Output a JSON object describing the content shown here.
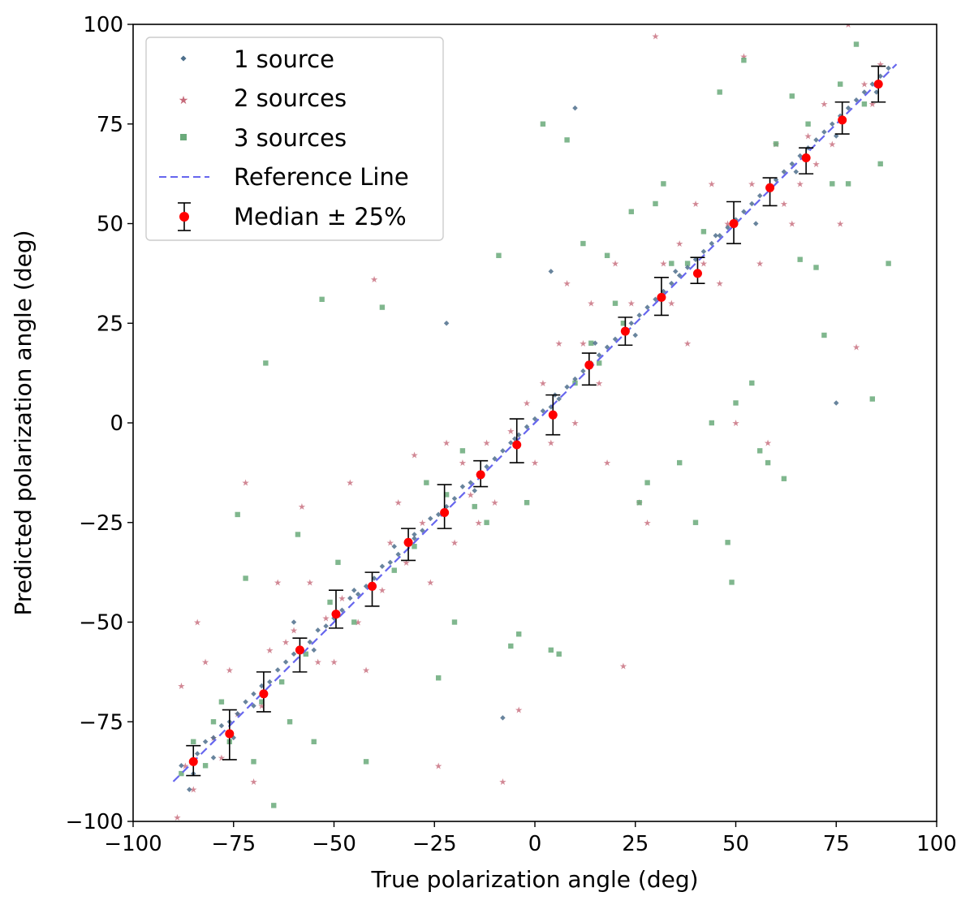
{
  "chart_data": {
    "type": "scatter",
    "title": "",
    "xlabel": "True polarization angle (deg)",
    "ylabel": "Predicted polarization angle (deg)",
    "xlim": [
      -100,
      100
    ],
    "ylim": [
      -100,
      100
    ],
    "xticks": [
      -100,
      -75,
      -50,
      -25,
      0,
      25,
      50,
      75,
      100
    ],
    "yticks": [
      -100,
      -75,
      -50,
      -25,
      0,
      25,
      50,
      75,
      100
    ],
    "xtick_labels": [
      "−100",
      "−75",
      "−50",
      "−25",
      "0",
      "25",
      "50",
      "75",
      "100"
    ],
    "ytick_labels": [
      "−100",
      "−75",
      "−50",
      "−25",
      "0",
      "25",
      "50",
      "75",
      "100"
    ],
    "grid": false,
    "legend_position": "top-left",
    "legend": [
      "1 source",
      "2 sources",
      "3 sources",
      "Reference Line",
      "Median ± 25%"
    ],
    "reference_line": {
      "name": "Reference Line",
      "x": [
        -90,
        90
      ],
      "y": [
        -90,
        90
      ],
      "color": "#6666ee"
    },
    "series": [
      {
        "name": "1 source",
        "marker": "diamond",
        "color": "#4d6f8c",
        "points": [
          [
            -88,
            -86
          ],
          [
            -86,
            -92
          ],
          [
            -84,
            -83
          ],
          [
            -82,
            -80
          ],
          [
            -80,
            -79
          ],
          [
            -78,
            -76
          ],
          [
            -76,
            -75
          ],
          [
            -74,
            -73
          ],
          [
            -72,
            -70
          ],
          [
            -70,
            -71
          ],
          [
            -68,
            -66
          ],
          [
            -66,
            -65
          ],
          [
            -64,
            -62
          ],
          [
            -62,
            -60
          ],
          [
            -60,
            -58
          ],
          [
            -58,
            -57
          ],
          [
            -56,
            -55
          ],
          [
            -54,
            -52
          ],
          [
            -52,
            -51
          ],
          [
            -50,
            -49
          ],
          [
            -48,
            -47
          ],
          [
            -46,
            -44
          ],
          [
            -44,
            -43
          ],
          [
            -42,
            -41
          ],
          [
            -40,
            -39
          ],
          [
            -38,
            -36
          ],
          [
            -36,
            -35
          ],
          [
            -34,
            -33
          ],
          [
            -32,
            -30
          ],
          [
            -30,
            -29
          ],
          [
            -28,
            -27
          ],
          [
            -26,
            -24
          ],
          [
            -24,
            -23
          ],
          [
            -22,
            -21
          ],
          [
            -20,
            -19
          ],
          [
            -18,
            -16
          ],
          [
            -16,
            -15
          ],
          [
            -14,
            -13
          ],
          [
            -12,
            -11
          ],
          [
            -10,
            -9
          ],
          [
            -8,
            -7
          ],
          [
            -6,
            -5
          ],
          [
            -4,
            -3
          ],
          [
            -2,
            -1
          ],
          [
            0,
            1
          ],
          [
            2,
            3
          ],
          [
            4,
            4
          ],
          [
            6,
            6
          ],
          [
            8,
            9
          ],
          [
            10,
            11
          ],
          [
            12,
            13
          ],
          [
            14,
            15
          ],
          [
            16,
            17
          ],
          [
            18,
            19
          ],
          [
            20,
            21
          ],
          [
            22,
            23
          ],
          [
            24,
            25
          ],
          [
            26,
            27
          ],
          [
            28,
            29
          ],
          [
            30,
            31
          ],
          [
            32,
            33
          ],
          [
            34,
            35
          ],
          [
            36,
            37
          ],
          [
            38,
            39
          ],
          [
            40,
            41
          ],
          [
            42,
            43
          ],
          [
            44,
            45
          ],
          [
            46,
            47
          ],
          [
            48,
            49
          ],
          [
            50,
            51
          ],
          [
            52,
            53
          ],
          [
            54,
            55
          ],
          [
            56,
            57
          ],
          [
            58,
            59
          ],
          [
            60,
            61
          ],
          [
            62,
            63
          ],
          [
            64,
            65
          ],
          [
            66,
            67
          ],
          [
            68,
            69
          ],
          [
            70,
            71
          ],
          [
            72,
            73
          ],
          [
            74,
            75
          ],
          [
            76,
            77
          ],
          [
            78,
            79
          ],
          [
            80,
            81
          ],
          [
            82,
            83
          ],
          [
            84,
            85
          ],
          [
            86,
            87
          ],
          [
            88,
            89
          ],
          [
            -85,
            -88
          ],
          [
            -70,
            -68
          ],
          [
            -55,
            -57
          ],
          [
            -35,
            -31
          ],
          [
            -15,
            -17
          ],
          [
            5,
            7
          ],
          [
            25,
            22
          ],
          [
            45,
            47
          ],
          [
            65,
            63
          ],
          [
            85,
            83
          ],
          [
            -75,
            -79
          ],
          [
            -45,
            -42
          ],
          [
            -5,
            -4
          ],
          [
            35,
            38
          ],
          [
            75,
            72
          ],
          [
            10,
            79
          ],
          [
            -22,
            25
          ],
          [
            -8,
            -74
          ],
          [
            4,
            38
          ],
          [
            75,
            5
          ],
          [
            -60,
            -50
          ],
          [
            -30,
            -28
          ],
          [
            15,
            20
          ],
          [
            55,
            50
          ],
          [
            -80,
            -84
          ]
        ]
      },
      {
        "name": "2 sources",
        "marker": "star",
        "color": "#c66a7a",
        "points": [
          [
            -89,
            -99
          ],
          [
            -88,
            -66
          ],
          [
            -87,
            -86
          ],
          [
            -85,
            -92
          ],
          [
            -84,
            -50
          ],
          [
            -82,
            -60
          ],
          [
            -80,
            -79
          ],
          [
            -78,
            -84
          ],
          [
            -76,
            -62
          ],
          [
            -74,
            -73
          ],
          [
            -72,
            -15
          ],
          [
            -70,
            -90
          ],
          [
            -68,
            -71
          ],
          [
            -66,
            -57
          ],
          [
            -64,
            -40
          ],
          [
            -62,
            -55
          ],
          [
            -60,
            -52
          ],
          [
            -58,
            -21
          ],
          [
            -56,
            -40
          ],
          [
            -54,
            -60
          ],
          [
            -52,
            -49
          ],
          [
            -50,
            -60
          ],
          [
            -48,
            -44
          ],
          [
            -46,
            -15
          ],
          [
            -44,
            -50
          ],
          [
            -42,
            -62
          ],
          [
            -40,
            36
          ],
          [
            -38,
            -42
          ],
          [
            -36,
            -30
          ],
          [
            -34,
            -20
          ],
          [
            -32,
            -35
          ],
          [
            -30,
            -8
          ],
          [
            -28,
            -25
          ],
          [
            -26,
            -40
          ],
          [
            -24,
            -86
          ],
          [
            -22,
            -5
          ],
          [
            -20,
            -30
          ],
          [
            -18,
            -10
          ],
          [
            -16,
            -18
          ],
          [
            -14,
            -25
          ],
          [
            -12,
            -5
          ],
          [
            -10,
            -20
          ],
          [
            -8,
            -90
          ],
          [
            -6,
            -2
          ],
          [
            -4,
            -72
          ],
          [
            -2,
            5
          ],
          [
            0,
            -10
          ],
          [
            2,
            10
          ],
          [
            4,
            -5
          ],
          [
            6,
            20
          ],
          [
            8,
            35
          ],
          [
            10,
            0
          ],
          [
            12,
            20
          ],
          [
            14,
            30
          ],
          [
            16,
            10
          ],
          [
            18,
            -10
          ],
          [
            20,
            40
          ],
          [
            22,
            -61
          ],
          [
            24,
            30
          ],
          [
            26,
            -20
          ],
          [
            28,
            -25
          ],
          [
            30,
            97
          ],
          [
            32,
            40
          ],
          [
            34,
            30
          ],
          [
            36,
            45
          ],
          [
            38,
            20
          ],
          [
            40,
            55
          ],
          [
            42,
            40
          ],
          [
            44,
            60
          ],
          [
            46,
            35
          ],
          [
            48,
            50
          ],
          [
            50,
            0
          ],
          [
            52,
            92
          ],
          [
            54,
            60
          ],
          [
            56,
            40
          ],
          [
            58,
            -5
          ],
          [
            60,
            70
          ],
          [
            62,
            55
          ],
          [
            64,
            50
          ],
          [
            66,
            60
          ],
          [
            68,
            72
          ],
          [
            70,
            65
          ],
          [
            72,
            80
          ],
          [
            74,
            70
          ],
          [
            76,
            50
          ],
          [
            78,
            100
          ],
          [
            80,
            19
          ],
          [
            82,
            85
          ],
          [
            84,
            80
          ],
          [
            86,
            90
          ]
        ]
      },
      {
        "name": "3 sources",
        "marker": "square",
        "color": "#6aaa7a",
        "points": [
          [
            -88,
            -88
          ],
          [
            -85,
            -80
          ],
          [
            -82,
            -86
          ],
          [
            -80,
            -75
          ],
          [
            -78,
            -70
          ],
          [
            -76,
            -80
          ],
          [
            -74,
            -23
          ],
          [
            -72,
            -39
          ],
          [
            -70,
            -85
          ],
          [
            -68,
            -70
          ],
          [
            -67,
            15
          ],
          [
            -65,
            -96
          ],
          [
            -63,
            -65
          ],
          [
            -61,
            -75
          ],
          [
            -59,
            -28
          ],
          [
            -57,
            -58
          ],
          [
            -55,
            -80
          ],
          [
            -53,
            31
          ],
          [
            -51,
            -45
          ],
          [
            -49,
            -35
          ],
          [
            -45,
            -50
          ],
          [
            -42,
            -85
          ],
          [
            -38,
            29
          ],
          [
            -35,
            -37
          ],
          [
            -30,
            -31
          ],
          [
            -27,
            -15
          ],
          [
            -24,
            -64
          ],
          [
            -22,
            -18
          ],
          [
            -20,
            -50
          ],
          [
            -18,
            -7
          ],
          [
            -15,
            -21
          ],
          [
            -12,
            -25
          ],
          [
            -9,
            42
          ],
          [
            -6,
            -56
          ],
          [
            -4,
            -53
          ],
          [
            -2,
            -20
          ],
          [
            2,
            75
          ],
          [
            4,
            -57
          ],
          [
            6,
            -58
          ],
          [
            8,
            71
          ],
          [
            10,
            10
          ],
          [
            12,
            45
          ],
          [
            14,
            20
          ],
          [
            16,
            15
          ],
          [
            18,
            42
          ],
          [
            20,
            30
          ],
          [
            22,
            25
          ],
          [
            24,
            53
          ],
          [
            26,
            -20
          ],
          [
            28,
            -15
          ],
          [
            30,
            55
          ],
          [
            32,
            60
          ],
          [
            34,
            40
          ],
          [
            36,
            -10
          ],
          [
            38,
            40
          ],
          [
            40,
            -25
          ],
          [
            42,
            48
          ],
          [
            44,
            0
          ],
          [
            46,
            83
          ],
          [
            48,
            -30
          ],
          [
            49,
            -40
          ],
          [
            50,
            5
          ],
          [
            52,
            91
          ],
          [
            54,
            10
          ],
          [
            56,
            -7
          ],
          [
            58,
            -10
          ],
          [
            60,
            70
          ],
          [
            62,
            -14
          ],
          [
            64,
            82
          ],
          [
            66,
            41
          ],
          [
            68,
            75
          ],
          [
            70,
            39
          ],
          [
            72,
            22
          ],
          [
            74,
            60
          ],
          [
            76,
            85
          ],
          [
            78,
            60
          ],
          [
            80,
            95
          ],
          [
            82,
            80
          ],
          [
            84,
            6
          ],
          [
            86,
            65
          ],
          [
            88,
            40
          ]
        ]
      },
      {
        "name": "Median ± 25%",
        "marker": "circle",
        "color": "#ff0000",
        "errorbar_color": "#000000",
        "points": [
          [
            -85,
            -85
          ],
          [
            -76,
            -78
          ],
          [
            -67.5,
            -68
          ],
          [
            -58.5,
            -57
          ],
          [
            -49.5,
            -48
          ],
          [
            -40.5,
            -41
          ],
          [
            -31.5,
            -30
          ],
          [
            -22.5,
            -22.5
          ],
          [
            -13.5,
            -13
          ],
          [
            -4.5,
            -5.5
          ],
          [
            4.5,
            2
          ],
          [
            13.5,
            14.5
          ],
          [
            22.5,
            23
          ],
          [
            31.5,
            31.5
          ],
          [
            40.5,
            37.5
          ],
          [
            49.5,
            50
          ],
          [
            58.5,
            59
          ],
          [
            67.5,
            66.5
          ],
          [
            76.5,
            76
          ],
          [
            85.5,
            85
          ]
        ],
        "lower": [
          -88.5,
          -84.5,
          -72.5,
          -62.5,
          -51.5,
          -46,
          -34.5,
          -26.5,
          -16,
          -10,
          -3,
          9.5,
          19.5,
          27,
          35,
          45,
          54.5,
          62.5,
          72.5,
          80.5
        ],
        "upper": [
          -81,
          -72,
          -62.5,
          -54,
          -42,
          -37.5,
          -26.5,
          -15.5,
          -9.5,
          1,
          7,
          17.5,
          26.5,
          36.5,
          41.5,
          55.5,
          61.5,
          69,
          80.5,
          89.5
        ]
      }
    ]
  }
}
